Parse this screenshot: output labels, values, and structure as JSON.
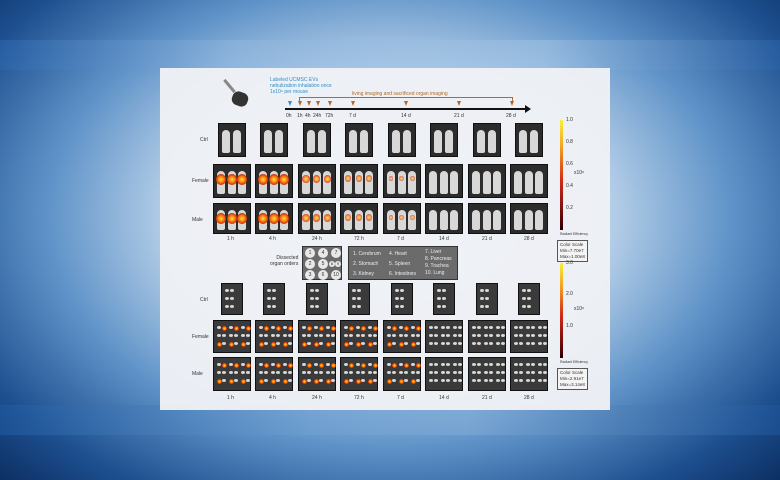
{
  "timeline": {
    "treatment_lines": [
      "Labeled UCMSC EVs",
      "nebulization inhalation once",
      "1x10⁹ per mouse"
    ],
    "imaging_label": "living imaging and sacrificed organ imaging",
    "ticks": [
      "0h",
      "1h",
      "4h",
      "24h",
      "72h",
      "7 d",
      "14 d",
      "21 d",
      "28 d"
    ]
  },
  "groups": [
    "Ctrl",
    "Female",
    "Male"
  ],
  "timepoints": [
    "1 h",
    "4 h",
    "24 h",
    "72 h",
    "7 d",
    "14 d",
    "21 d",
    "28 d"
  ],
  "whole_body_signal": {
    "Female": [
      0.9,
      0.9,
      0.5,
      0.3,
      0.1,
      0.05,
      0.02,
      0.0
    ],
    "Male": [
      0.9,
      0.9,
      0.5,
      0.3,
      0.1,
      0.05,
      0.02,
      0.0
    ]
  },
  "organ_signal": {
    "Female": [
      0.6,
      0.7,
      0.6,
      0.3,
      0.15,
      0.1,
      0.05,
      0.02
    ],
    "Male": [
      0.6,
      0.7,
      0.6,
      0.3,
      0.15,
      0.1,
      0.05,
      0.02
    ]
  },
  "organ_legend": {
    "title_lines": [
      "Dissected",
      "organ orders"
    ],
    "numbers": [
      "1",
      "4",
      "7",
      "2",
      "5",
      "8",
      "3",
      "6",
      "9",
      "10"
    ],
    "items": [
      "1. Cerebrum",
      "2. Stomach",
      "3. Kidney",
      "4. Heart",
      "5. Spleen",
      "6. Intestines",
      "7. Liver",
      "8. Pancreas",
      "9. Trachea",
      "10. Lung"
    ]
  },
  "scale_top": {
    "ticks": [
      "1.0",
      "0.8",
      "0.6",
      "0.4",
      "0.2"
    ],
    "unit": "x10⁸",
    "caption": "Radiant Efficiency",
    "box": [
      "Color Scale",
      "Min=7.70e7",
      "Max=1.00e8"
    ]
  },
  "scale_bottom": {
    "ticks": [
      "3.0",
      "2.0",
      "1.0"
    ],
    "unit": "x10⁸",
    "caption": "Radiant Efficiency",
    "box": [
      "Color Scale",
      "Min=2.91e7",
      "Max=3.14e8"
    ]
  }
}
